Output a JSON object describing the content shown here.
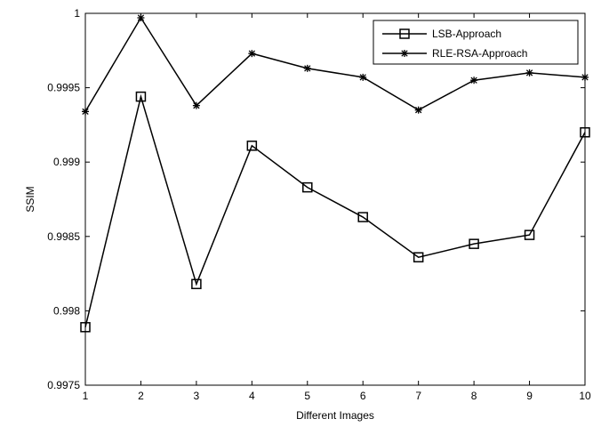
{
  "chart_data": {
    "type": "line",
    "title": "",
    "xlabel": "Different Images",
    "ylabel": "SSIM",
    "x": [
      1,
      2,
      3,
      4,
      5,
      6,
      7,
      8,
      9,
      10
    ],
    "xlim": [
      1,
      10
    ],
    "ylim": [
      0.9975,
      1
    ],
    "xticks": [
      "1",
      "2",
      "3",
      "4",
      "5",
      "6",
      "7",
      "8",
      "9",
      "10"
    ],
    "yticks": [
      "0.9975",
      "0.998",
      "0.9985",
      "0.999",
      "0.9995",
      "1"
    ],
    "grid": false,
    "legend_position": "top-right",
    "series": [
      {
        "name": "LSB-Approach",
        "marker": "square",
        "color": "#000000",
        "values": [
          0.99789,
          0.99944,
          0.99818,
          0.99911,
          0.99883,
          0.99863,
          0.99836,
          0.99845,
          0.99851,
          0.9992
        ]
      },
      {
        "name": "RLE-RSA-Approach",
        "marker": "star",
        "color": "#000000",
        "values": [
          0.99934,
          0.99997,
          0.99938,
          0.99973,
          0.99963,
          0.99957,
          0.99935,
          0.99955,
          0.9996,
          0.99957
        ]
      }
    ]
  }
}
